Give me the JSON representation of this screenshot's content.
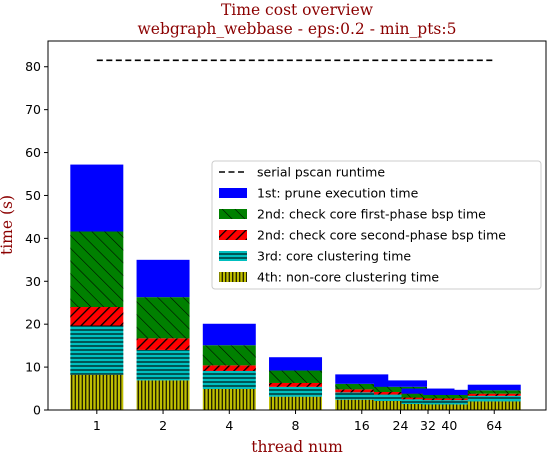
{
  "chart_data": {
    "type": "bar",
    "stacked": true,
    "title": "Time cost overview",
    "subtitle": "webgraph_webbase - eps:0.2 - min_pts:5",
    "xlabel": "thread num",
    "ylabel": "time (s)",
    "x_scale": "log2",
    "x": [
      1,
      2,
      4,
      8,
      16,
      24,
      32,
      40,
      64
    ],
    "x_tick_labels": [
      "1",
      "2",
      "4",
      "8",
      "16",
      "24",
      "32",
      "40",
      "64"
    ],
    "ylim": [
      0,
      86
    ],
    "y_ticks": [
      0,
      10,
      20,
      30,
      40,
      50,
      60,
      70,
      80
    ],
    "legend_position": "center-right",
    "series": [
      {
        "name": "4th: non-core clustering time",
        "color": "#bfbf00",
        "hatch": "vertical",
        "values": [
          8.2,
          6.9,
          4.9,
          3.1,
          2.4,
          2.1,
          1.4,
          1.3,
          2.0
        ]
      },
      {
        "name": "3rd: core clustering time",
        "color": "#00bfbf",
        "hatch": "horizontal",
        "values": [
          11.5,
          7.1,
          4.2,
          2.3,
          1.7,
          1.5,
          1.1,
          1.0,
          1.3
        ]
      },
      {
        "name": "2nd: check core second-phase bsp time",
        "color": "#ff0000",
        "hatch": "diagonal-up",
        "values": [
          4.3,
          2.7,
          1.3,
          0.9,
          0.7,
          0.6,
          0.4,
          0.4,
          0.5
        ]
      },
      {
        "name": "2nd: check core first-phase bsp time",
        "color": "#008000",
        "hatch": "diagonal-down",
        "values": [
          17.6,
          9.6,
          4.7,
          2.9,
          1.3,
          1.2,
          0.9,
          0.8,
          0.8
        ]
      },
      {
        "name": "1st: prune execution time",
        "color": "#0000ff",
        "hatch": "none",
        "values": [
          15.6,
          8.7,
          5.0,
          3.1,
          2.2,
          1.5,
          1.2,
          1.2,
          1.3
        ]
      }
    ],
    "reference_line": {
      "name": "serial pscan runtime",
      "value": 81.5,
      "style": "dashed",
      "color": "#000000"
    },
    "legend_order": [
      "serial pscan runtime",
      "1st: prune execution time",
      "2nd: check core first-phase bsp time",
      "2nd: check core second-phase bsp time",
      "3rd: core clustering time",
      "4th: non-core clustering time"
    ]
  }
}
